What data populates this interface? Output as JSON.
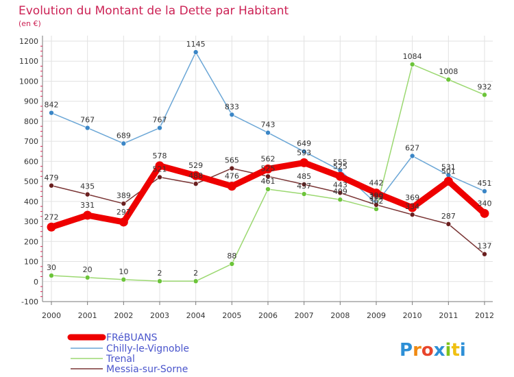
{
  "chart_data": {
    "type": "line",
    "title": "Evolution du Montant de la Dette par Habitant",
    "subtitle": "(en €)",
    "x": [
      "2000",
      "2001",
      "2002",
      "2003",
      "2004",
      "2005",
      "2006",
      "2007",
      "2008",
      "2009",
      "2010",
      "2011",
      "2012"
    ],
    "ylim": [
      -100,
      1200
    ],
    "yticks": [
      -100,
      0,
      100,
      200,
      300,
      400,
      500,
      600,
      700,
      800,
      900,
      1000,
      1100,
      1200
    ],
    "grid": true,
    "legend_position": "bottom-left",
    "series": [
      {
        "name": "FRéBUANS",
        "color": "#ee0000",
        "line_width": 9,
        "marker_radius": 6.5,
        "values": [
          272,
          331,
          297,
          578,
          529,
          476,
          562,
          593,
          525,
          442,
          369,
          501,
          340
        ],
        "labels": [
          "272",
          "331",
          "297",
          "578",
          "529",
          "476",
          "562",
          "593",
          "525",
          "442",
          "369",
          "501",
          "340"
        ]
      },
      {
        "name": "Chilly-le-Vignoble",
        "color": "#6aa6d6",
        "marker_color": "#3b86c6",
        "line_width": 1.5,
        "marker_radius": 3.5,
        "values": [
          842,
          767,
          689,
          767,
          1145,
          833,
          743,
          649,
          555,
          390,
          627,
          531,
          451
        ],
        "labels": [
          "842",
          "767",
          "689",
          "767",
          "1145",
          "833",
          "743",
          "649",
          "555",
          "390",
          "627",
          "531",
          "451"
        ]
      },
      {
        "name": "Trenal",
        "color": "#9bd870",
        "marker_color": "#6cc43a",
        "line_width": 1.5,
        "marker_radius": 3.5,
        "values": [
          30,
          20,
          10,
          2,
          2,
          88,
          461,
          437,
          409,
          362,
          1084,
          1008,
          932
        ],
        "labels": [
          "30",
          "20",
          "10",
          "2",
          "2",
          "88",
          "461",
          "437",
          "409",
          "362",
          "1084",
          "1008",
          "932"
        ]
      },
      {
        "name": "Messia-sur-Sorne",
        "color": "#7a3535",
        "marker_color": "#6a1f1f",
        "line_width": 1.5,
        "marker_radius": 3.5,
        "values": [
          479,
          435,
          389,
          521,
          488,
          565,
          525,
          485,
          443,
          383,
          334,
          287,
          137
        ],
        "labels": [
          "479",
          "435",
          "389",
          "521",
          "488",
          "565",
          "525",
          "485",
          "443",
          "383",
          "334",
          "287",
          "137"
        ]
      }
    ]
  },
  "brand": {
    "text": "Proxiti"
  }
}
